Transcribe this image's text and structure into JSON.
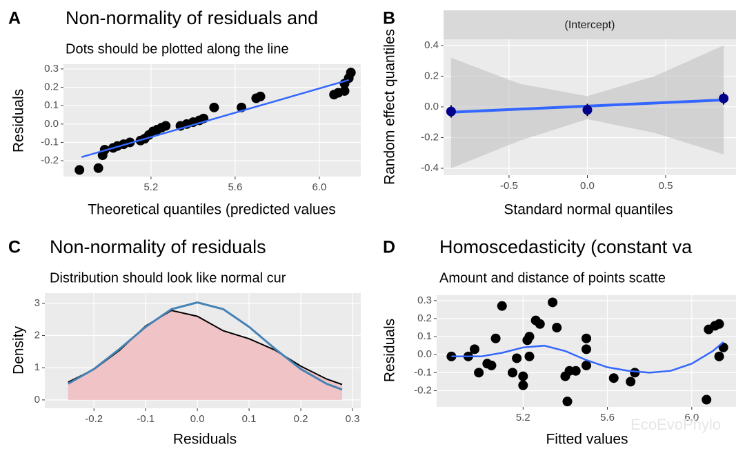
{
  "chart_data": [
    {
      "type": "scatter",
      "panel_label": "A",
      "title": "Non-normality of residuals and",
      "subtitle": "Dots should be plotted along the line",
      "x_label": "Theoretical quantiles (predicted values",
      "y_label": "Residuals",
      "x": [
        4.86,
        4.95,
        4.97,
        4.98,
        5.02,
        5.04,
        5.07,
        5.1,
        5.15,
        5.17,
        5.19,
        5.21,
        5.23,
        5.25,
        5.27,
        5.34,
        5.37,
        5.4,
        5.43,
        5.45,
        5.5,
        5.63,
        5.7,
        5.72,
        6.07,
        6.09,
        6.12,
        6.12,
        6.14,
        6.15
      ],
      "values": [
        -0.25,
        -0.24,
        -0.17,
        -0.14,
        -0.13,
        -0.12,
        -0.11,
        -0.1,
        -0.09,
        -0.08,
        -0.06,
        -0.04,
        -0.03,
        -0.02,
        -0.01,
        -0.01,
        0.0,
        0.01,
        0.02,
        0.03,
        0.09,
        0.09,
        0.14,
        0.15,
        0.16,
        0.17,
        0.18,
        0.22,
        0.25,
        0.28
      ],
      "color": "#000000",
      "line": {
        "x": [
          4.87,
          6.14
        ],
        "values": [
          -0.18,
          0.24
        ],
        "color": "#3366ff"
      },
      "xlim": [
        4.784,
        6.197
      ],
      "ylim": [
        -0.286,
        0.326
      ],
      "xticks": [
        5.2,
        5.6,
        {
          "value": 6,
          "label": "6.0"
        }
      ],
      "yticks": [
        -0.2,
        -0.1,
        {
          "value": 0,
          "label": "0.0"
        },
        0.1,
        0.2,
        0.3
      ],
      "grid": true
    },
    {
      "type": "dotplot",
      "panel_label": "B",
      "strip": "(Intercept)",
      "x_label": "Standard normal quantiles",
      "y_label": "Random effect quantiles",
      "x": [
        -0.87,
        0,
        0.87
      ],
      "values": [
        -0.03,
        -0.02,
        0.055
      ],
      "errors": [
        0.04,
        0.04,
        0.04
      ],
      "color": "#00008b",
      "line": {
        "x": [
          -0.87,
          0.87
        ],
        "values": [
          -0.035,
          0.045
        ],
        "color": "#3366ff"
      },
      "band": {
        "x": [
          -0.87,
          -0.43,
          0,
          0.43,
          0.87
        ],
        "lower": [
          -0.4,
          -0.22,
          -0.08,
          -0.17,
          -0.31
        ],
        "upper": [
          0.32,
          0.15,
          0.07,
          0.2,
          0.4
        ],
        "color": "#bdbdbd"
      },
      "xlim": [
        -0.918,
        0.949
      ],
      "ylim": [
        -0.445,
        0.44
      ],
      "xticks": [
        -0.5,
        {
          "value": 0,
          "label": "0.0"
        },
        0.5
      ],
      "yticks": [
        -0.4,
        -0.2,
        {
          "value": 0,
          "label": "0.0"
        },
        0.2,
        0.4
      ],
      "grid": true
    },
    {
      "type": "density",
      "panel_label": "C",
      "title": "Non-normality of residuals",
      "subtitle": "Distribution should look like normal cur",
      "x_label": "Residuals",
      "y_label": "Density",
      "x": [
        -0.25,
        -0.2,
        -0.15,
        -0.1,
        -0.05,
        0,
        0.05,
        0.1,
        0.15,
        0.2,
        0.25,
        0.28
      ],
      "values": [
        0.55,
        0.95,
        1.55,
        2.3,
        2.78,
        2.6,
        2.15,
        1.9,
        1.55,
        1.05,
        0.65,
        0.48
      ],
      "normal_values": [
        0.5,
        0.96,
        1.59,
        2.27,
        2.82,
        3.03,
        2.82,
        2.27,
        1.59,
        0.96,
        0.5,
        0.32
      ],
      "color": "#000000",
      "fill": "#f0c4c6",
      "normal_color": "#4682b4",
      "xlim": [
        -0.295,
        0.316
      ],
      "ylim": [
        -0.26,
        3.32
      ],
      "xticks": [
        -0.2,
        -0.1,
        {
          "value": 0,
          "label": "0.0"
        },
        0.1,
        0.2,
        0.3
      ],
      "yticks": [
        0,
        1,
        2,
        3
      ],
      "grid": true
    },
    {
      "type": "scatter",
      "panel_label": "D",
      "title": "Homoscedasticity (constant va",
      "subtitle": "Amount and distance of points scatte",
      "x_label": "Fitted values",
      "y_label": "Residuals",
      "x": [
        4.86,
        4.94,
        4.97,
        4.99,
        5.03,
        5.05,
        5.07,
        5.1,
        5.15,
        5.17,
        5.2,
        5.2,
        5.22,
        5.23,
        5.23,
        5.26,
        5.28,
        5.34,
        5.36,
        5.4,
        5.41,
        5.42,
        5.45,
        5.5,
        5.5,
        5.5,
        5.63,
        5.71,
        5.73,
        6.07,
        6.08,
        6.11,
        6.13,
        6.13,
        6.15
      ],
      "values": [
        -0.01,
        -0.01,
        0.03,
        -0.1,
        -0.05,
        -0.06,
        0.09,
        0.27,
        -0.1,
        -0.02,
        -0.17,
        -0.12,
        0.08,
        0.1,
        -0.01,
        0.19,
        0.17,
        0.29,
        0.15,
        -0.12,
        -0.26,
        -0.09,
        -0.09,
        -0.06,
        0.03,
        0.09,
        -0.13,
        -0.15,
        -0.1,
        -0.25,
        0.14,
        0.16,
        0.17,
        -0.01,
        0.04
      ],
      "color": "#000000",
      "line": {
        "x": [
          4.86,
          5.0,
          5.1,
          5.2,
          5.3,
          5.4,
          5.5,
          5.6,
          5.7,
          5.8,
          5.9,
          6.0,
          6.1,
          6.15
        ],
        "values": [
          -0.01,
          -0.01,
          0.01,
          0.04,
          0.05,
          0.02,
          -0.03,
          -0.07,
          -0.09,
          -0.1,
          -0.09,
          -0.05,
          0.02,
          0.07
        ],
        "color": "#3366ff"
      },
      "xlim": [
        4.79,
        6.21
      ],
      "ylim": [
        -0.29,
        0.33
      ],
      "xticks": [
        5.2,
        5.6,
        {
          "value": 6,
          "label": "6.0"
        }
      ],
      "yticks": [
        -0.2,
        -0.1,
        {
          "value": 0,
          "label": "0.0"
        },
        0.1,
        0.2,
        0.3
      ],
      "grid": true
    }
  ],
  "watermark": "EcoEvoPhylo"
}
